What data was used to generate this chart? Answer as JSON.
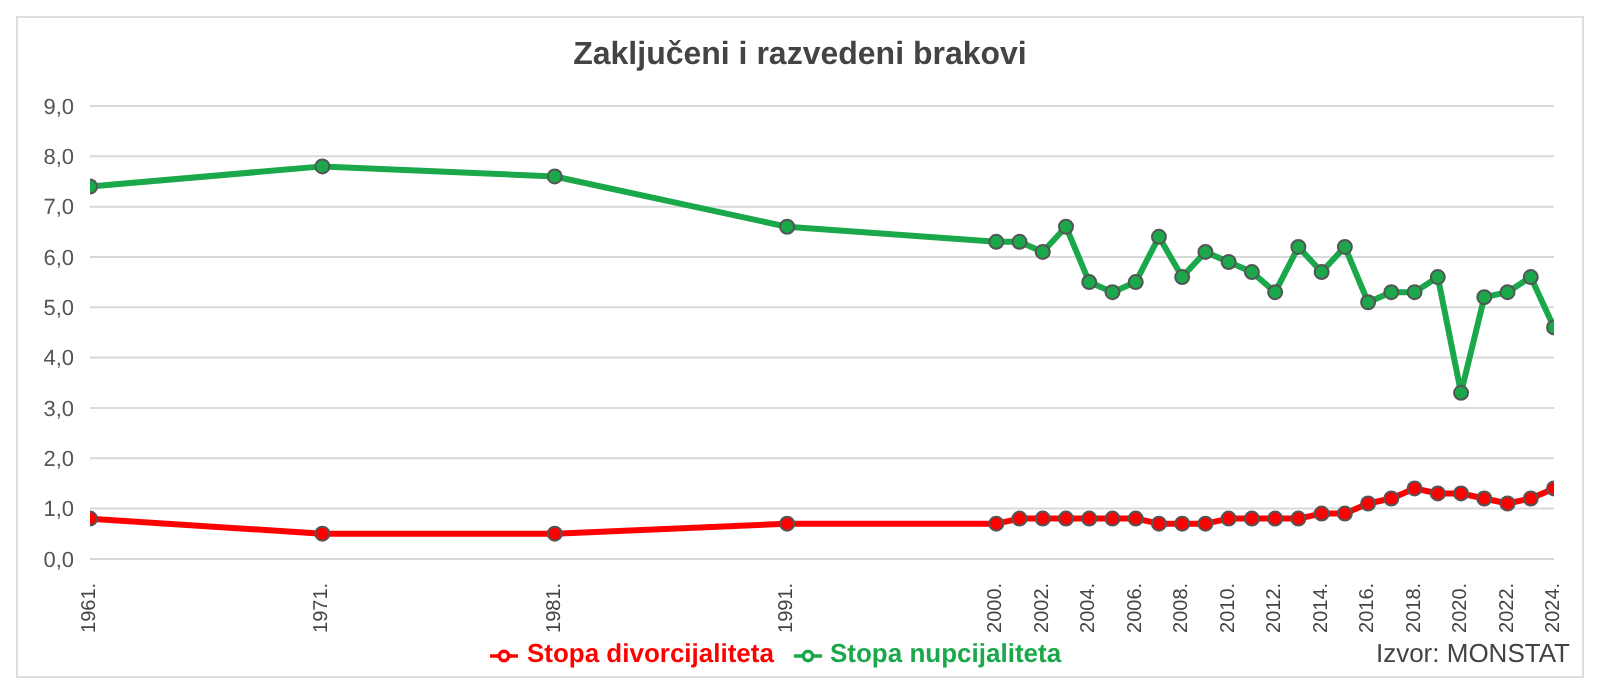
{
  "chart_data": {
    "type": "line",
    "title": "Zaključeni i razvedeni brakovi",
    "x": [
      1961,
      1971,
      1981,
      1991,
      2000,
      2001,
      2002,
      2003,
      2004,
      2005,
      2006,
      2007,
      2008,
      2009,
      2010,
      2011,
      2012,
      2013,
      2014,
      2015,
      2016,
      2017,
      2018,
      2019,
      2020,
      2021,
      2022,
      2023,
      2024
    ],
    "series": [
      {
        "name": "Stopa nupcijaliteta",
        "color": "#1aa84a",
        "values": [
          7.4,
          7.8,
          7.6,
          6.6,
          6.3,
          6.3,
          6.1,
          6.6,
          5.5,
          5.3,
          5.5,
          6.4,
          5.6,
          6.1,
          5.9,
          5.7,
          5.3,
          6.2,
          5.7,
          6.2,
          5.1,
          5.3,
          5.3,
          5.6,
          3.3,
          5.2,
          5.3,
          5.6,
          4.6
        ]
      },
      {
        "name": "Stopa divorcijaliteta",
        "color": "#ff0000",
        "values": [
          0.8,
          0.5,
          0.5,
          0.7,
          0.7,
          0.8,
          0.8,
          0.8,
          0.8,
          0.8,
          0.8,
          0.7,
          0.7,
          0.7,
          0.8,
          0.8,
          0.8,
          0.8,
          0.9,
          0.9,
          1.1,
          1.2,
          1.4,
          1.3,
          1.3,
          1.2,
          1.1,
          1.2,
          1.4
        ]
      }
    ],
    "xlim": [
      1961,
      2024
    ],
    "xticks": [
      {
        "value": 1961,
        "label": "1961."
      },
      {
        "value": 1971,
        "label": "1971."
      },
      {
        "value": 1981,
        "label": "1981."
      },
      {
        "value": 1991,
        "label": "1991."
      },
      {
        "value": 2000,
        "label": "2000."
      },
      {
        "value": 2002,
        "label": "2002."
      },
      {
        "value": 2004,
        "label": "2004."
      },
      {
        "value": 2006,
        "label": "2006."
      },
      {
        "value": 2008,
        "label": "2008."
      },
      {
        "value": 2010,
        "label": "2010."
      },
      {
        "value": 2012,
        "label": "2012."
      },
      {
        "value": 2014,
        "label": "2014."
      },
      {
        "value": 2016,
        "label": "2016."
      },
      {
        "value": 2018,
        "label": "2018."
      },
      {
        "value": 2020,
        "label": "2020."
      },
      {
        "value": 2022,
        "label": "2022."
      },
      {
        "value": 2024,
        "label": "2024."
      }
    ],
    "ylim": [
      0,
      9
    ],
    "yticks": [
      {
        "value": 0,
        "label": "0,0"
      },
      {
        "value": 1,
        "label": "1,0"
      },
      {
        "value": 2,
        "label": "2,0"
      },
      {
        "value": 3,
        "label": "3,0"
      },
      {
        "value": 4,
        "label": "4,0"
      },
      {
        "value": 5,
        "label": "5,0"
      },
      {
        "value": 6,
        "label": "6,0"
      },
      {
        "value": 7,
        "label": "7,0"
      },
      {
        "value": 8,
        "label": "8,0"
      },
      {
        "value": 9,
        "label": "9,0"
      }
    ],
    "grid": "y",
    "legend": "bottom",
    "marker": "circle",
    "line_style": "solid",
    "annotations": [
      "Izvor: MONSTAT"
    ]
  }
}
